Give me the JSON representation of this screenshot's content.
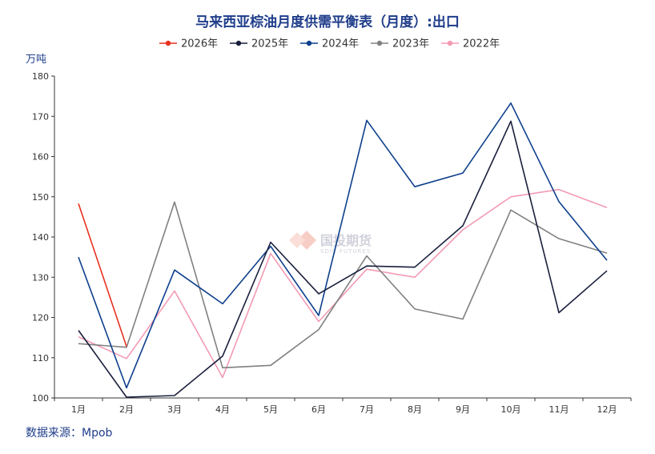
{
  "chart_data": {
    "type": "line",
    "title": "马来西亚棕油月度供需平衡表（月度）:出口",
    "ylabel": "万吨",
    "categories": [
      "1月",
      "2月",
      "3月",
      "4月",
      "5月",
      "6月",
      "7月",
      "8月",
      "9月",
      "10月",
      "11月",
      "12月"
    ],
    "ylim": [
      100,
      180
    ],
    "yticks": [
      100,
      110,
      120,
      130,
      140,
      150,
      160,
      170,
      180
    ],
    "grid": false,
    "legend_position": "top",
    "series": [
      {
        "name": "2026年",
        "color": "#e8321e",
        "values": [
          148.3,
          112.8,
          null,
          null,
          null,
          null,
          null,
          null,
          null,
          null,
          null,
          null
        ]
      },
      {
        "name": "2025年",
        "color": "#1a1f3d",
        "values": [
          116.8,
          100.2,
          100.6,
          110.4,
          138.7,
          125.9,
          132.8,
          132.5,
          142.8,
          168.8,
          121.2,
          131.6
        ]
      },
      {
        "name": "2024年",
        "color": "#0d3f8c",
        "values": [
          135.0,
          102.5,
          131.8,
          123.4,
          137.7,
          120.5,
          169.0,
          152.5,
          155.9,
          173.3,
          148.8,
          134.2
        ]
      },
      {
        "name": "2023年",
        "color": "#808080",
        "values": [
          113.5,
          112.6,
          148.7,
          107.5,
          108.1,
          117.0,
          135.3,
          122.1,
          119.6,
          146.7,
          139.6,
          136.0
        ]
      },
      {
        "name": "2022年",
        "color": "#f39ab3",
        "values": [
          115.2,
          109.8,
          126.6,
          105.1,
          135.9,
          119.0,
          132.0,
          130.0,
          141.8,
          150.0,
          151.8,
          147.3
        ]
      }
    ]
  },
  "watermark": {
    "text": "国投期货",
    "sub": "SDIC FUTURES"
  },
  "source": "数据来源：Mpob"
}
